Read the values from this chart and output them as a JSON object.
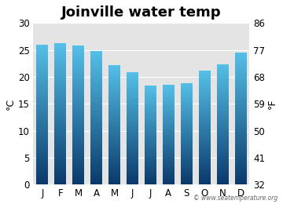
{
  "title": "Joinville water temp",
  "months": [
    "J",
    "F",
    "M",
    "A",
    "M",
    "J",
    "J",
    "A",
    "S",
    "O",
    "N",
    "D"
  ],
  "values_c": [
    26.0,
    26.2,
    25.8,
    24.8,
    22.2,
    20.8,
    18.4,
    18.6,
    18.8,
    21.1,
    22.3,
    24.5
  ],
  "ylim_c": [
    0,
    30
  ],
  "yticks_c": [
    0,
    5,
    10,
    15,
    20,
    25,
    30
  ],
  "yticks_f": [
    32,
    41,
    50,
    59,
    68,
    77,
    86
  ],
  "ylabel_left": "°C",
  "ylabel_right": "°F",
  "background_color": "#ffffff",
  "plot_bg_color": "#e4e4e4",
  "bar_color_top": "#55c0e8",
  "bar_color_bottom": "#0a3a6b",
  "grid_color": "#ffffff",
  "title_fontsize": 13,
  "tick_fontsize": 8.5,
  "label_fontsize": 9,
  "watermark": "© www.seatemperature.org"
}
